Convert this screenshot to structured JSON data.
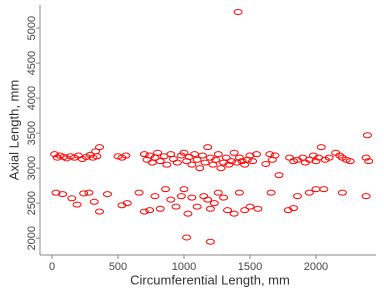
{
  "chart_data": {
    "type": "scatter",
    "x_label": "Circumferential Length, mm",
    "y_label": "Axial Length, mm",
    "color": "#ff0000",
    "xlim": [
      -91,
      2455
    ],
    "ylim": [
      1760,
      5330
    ],
    "xticks": [
      0,
      500,
      1000,
      1500,
      2000
    ],
    "yticks": [
      2000,
      2500,
      3000,
      3500,
      4000,
      4500,
      5000
    ],
    "x": [
      20,
      40,
      60,
      90,
      110,
      140,
      170,
      200,
      230,
      260,
      290,
      310,
      340,
      360,
      330,
      500,
      530,
      560,
      700,
      720,
      740,
      760,
      780,
      800,
      820,
      850,
      870,
      900,
      920,
      950,
      980,
      1000,
      1020,
      1040,
      1060,
      1080,
      1100,
      1120,
      1140,
      1160,
      1180,
      1200,
      1220,
      1240,
      1260,
      1280,
      1300,
      1320,
      1340,
      1360,
      1380,
      1400,
      1420,
      1440,
      1460,
      1480,
      1500,
      1520,
      1650,
      1670,
      1690,
      1800,
      1830,
      1860,
      1900,
      1920,
      1950,
      1980,
      2000,
      2020,
      2040,
      2070,
      2100,
      2150,
      2180,
      2200,
      2230,
      2260,
      2380,
      2400,
      2390,
      1620,
      1550,
      30,
      80,
      150,
      190,
      240,
      280,
      320,
      360,
      420,
      530,
      570,
      660,
      700,
      740,
      780,
      820,
      860,
      900,
      940,
      980,
      1000,
      1030,
      1060,
      1100,
      1150,
      1180,
      1200,
      1230,
      1260,
      1300,
      1330,
      1380,
      1420,
      1460,
      1500,
      1660,
      1720,
      1790,
      1830,
      1860,
      1950,
      2000,
      2060,
      2200,
      2380,
      1020,
      1200,
      1410,
      1560
    ],
    "values": [
      3200,
      3150,
      3180,
      3160,
      3140,
      3170,
      3150,
      3180,
      3130,
      3160,
      3190,
      3150,
      3170,
      3300,
      3240,
      3170,
      3150,
      3180,
      3200,
      3120,
      3180,
      3080,
      3150,
      3220,
      3100,
      3170,
      3050,
      3200,
      3130,
      3080,
      3180,
      3220,
      3100,
      3160,
      3050,
      3200,
      3120,
      3000,
      3180,
      3080,
      3300,
      3150,
      3050,
      3120,
      3200,
      3000,
      3080,
      3150,
      3050,
      3100,
      3220,
      3080,
      3150,
      3100,
      3050,
      3120,
      3180,
      3100,
      3200,
      3120,
      3180,
      3150,
      3100,
      3120,
      3150,
      3080,
      3120,
      3180,
      3100,
      3150,
      3300,
      3120,
      3150,
      3220,
      3180,
      3150,
      3120,
      3100,
      3150,
      3100,
      3470,
      3060,
      3200,
      2650,
      2630,
      2570,
      2480,
      2640,
      2650,
      2520,
      2380,
      2630,
      2470,
      2500,
      2650,
      2380,
      2400,
      2600,
      2420,
      2700,
      2550,
      2450,
      2600,
      2700,
      2350,
      2580,
      2450,
      2600,
      2550,
      2420,
      2500,
      2650,
      2580,
      2400,
      2350,
      2650,
      2400,
      2450,
      2650,
      2900,
      2400,
      2430,
      2600,
      2650,
      2700,
      2700,
      2650,
      2600,
      2010,
      1950,
      5230,
      2420
    ]
  }
}
